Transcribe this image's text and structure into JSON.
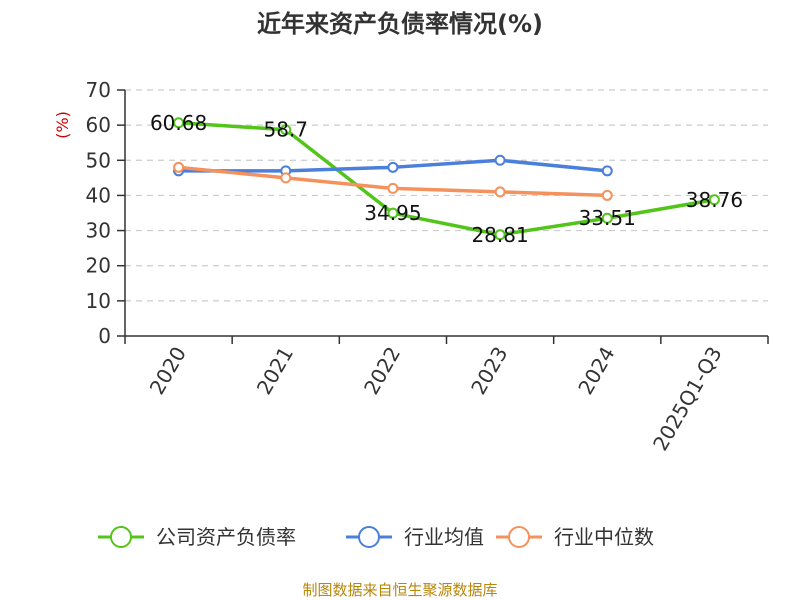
{
  "title": "近年来资产负债率情况(%)",
  "source": "制图数据来自恒生聚源数据库",
  "chart_data": {
    "type": "line",
    "title": "近年来资产负债率情况(%)",
    "ylabel": "(%)",
    "xlabel": "",
    "ylim": [
      0,
      70
    ],
    "yticks": [
      0,
      10,
      20,
      30,
      40,
      50,
      60,
      70
    ],
    "grid": true,
    "legend_position": "bottom",
    "categories": [
      "2020",
      "2021",
      "2022",
      "2023",
      "2024",
      "2025Q1-Q3"
    ],
    "series": [
      {
        "name": "公司资产负债率",
        "color": "#52c41a",
        "values": [
          60.68,
          58.7,
          34.95,
          28.81,
          33.51,
          38.76
        ],
        "labels": [
          "60.68",
          "58.7",
          "34.95",
          "28.81",
          "33.51",
          "38.76"
        ]
      },
      {
        "name": "行业均值",
        "color": "#4a7fdb",
        "values": [
          47,
          47,
          48,
          50,
          47,
          null
        ]
      },
      {
        "name": "行业中位数",
        "color": "#f5915c",
        "values": [
          48,
          45,
          42,
          41,
          40,
          null
        ]
      }
    ]
  }
}
